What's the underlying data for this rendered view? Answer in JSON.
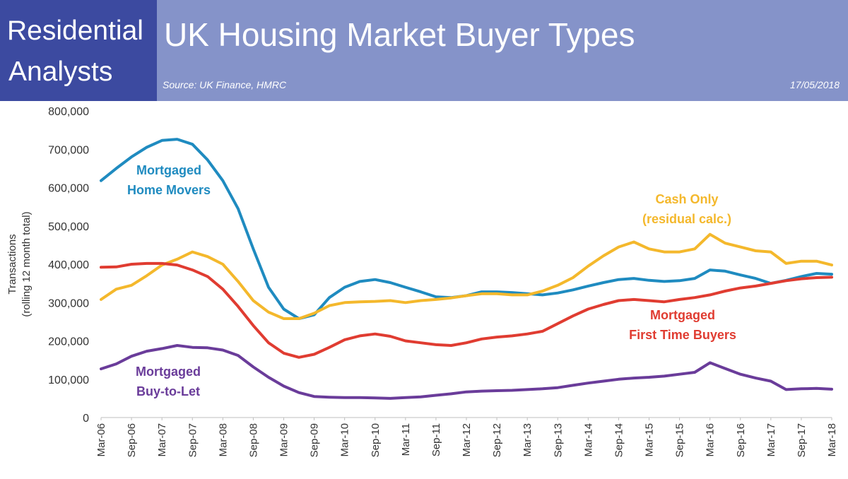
{
  "brand": {
    "line1": "Residential",
    "line2": "Analysts"
  },
  "header": {
    "title": "UK Housing Market Buyer Types",
    "source": "Source: UK Finance, HMRC",
    "date": "17/05/2018"
  },
  "colors": {
    "brand": "#3c4aa0",
    "header": "#8593c9",
    "home_movers": "#1f8bc0",
    "cash_only": "#f4b82c",
    "first_time_buyers": "#e03c31",
    "buy_to_let": "#6a3c9a"
  },
  "chart_data": {
    "type": "line",
    "title": "",
    "xlabel": "",
    "ylabel": "Transactions (rolling 12 month total)",
    "ylabel_lines": [
      "Transactions",
      "(rolling 12 month total)"
    ],
    "ylim": [
      0,
      800000
    ],
    "yticks": [
      0,
      100000,
      200000,
      300000,
      400000,
      500000,
      600000,
      700000,
      800000
    ],
    "ytick_labels": [
      "0",
      "100,000",
      "200,000",
      "300,000",
      "400,000",
      "500,000",
      "600,000",
      "700,000",
      "800,000"
    ],
    "x": [
      "Mar-06",
      "Jun-06",
      "Sep-06",
      "Dec-06",
      "Mar-07",
      "Jun-07",
      "Sep-07",
      "Dec-07",
      "Mar-08",
      "Jun-08",
      "Sep-08",
      "Dec-08",
      "Mar-09",
      "Jun-09",
      "Sep-09",
      "Dec-09",
      "Mar-10",
      "Jun-10",
      "Sep-10",
      "Dec-10",
      "Mar-11",
      "Jun-11",
      "Sep-11",
      "Dec-11",
      "Mar-12",
      "Jun-12",
      "Sep-12",
      "Dec-12",
      "Mar-13",
      "Jun-13",
      "Sep-13",
      "Dec-13",
      "Mar-14",
      "Jun-14",
      "Sep-14",
      "Dec-14",
      "Mar-15",
      "Jun-15",
      "Sep-15",
      "Dec-15",
      "Mar-16",
      "Jun-16",
      "Sep-16",
      "Dec-16",
      "Mar-17",
      "Jun-17",
      "Sep-17",
      "Dec-17",
      "Mar-18"
    ],
    "xtick_labels": [
      "Mar-06",
      "Sep-06",
      "Mar-07",
      "Sep-07",
      "Mar-08",
      "Sep-08",
      "Mar-09",
      "Sep-09",
      "Mar-10",
      "Sep-10",
      "Mar-11",
      "Sep-11",
      "Mar-12",
      "Sep-12",
      "Mar-13",
      "Sep-13",
      "Mar-14",
      "Sep-14",
      "Mar-15",
      "Sep-15",
      "Mar-16",
      "Sep-16",
      "Mar-17",
      "Sep-17",
      "Mar-18"
    ],
    "grid": false,
    "legend": "inline labels",
    "series": [
      {
        "key": "home_movers",
        "label_lines": [
          "Mortgaged",
          "Home Movers"
        ],
        "values": [
          618000,
          650000,
          680000,
          705000,
          723000,
          726000,
          713000,
          672000,
          618000,
          545000,
          440000,
          340000,
          283000,
          258000,
          268000,
          313000,
          340000,
          355000,
          360000,
          352000,
          340000,
          328000,
          315000,
          313000,
          318000,
          328000,
          328000,
          326000,
          323000,
          320000,
          325000,
          333000,
          343000,
          352000,
          360000,
          363000,
          358000,
          355000,
          357000,
          363000,
          385000,
          382000,
          372000,
          363000,
          350000,
          358000,
          368000,
          376000,
          374000
        ]
      },
      {
        "key": "cash_only",
        "label_lines": [
          "Cash Only",
          "(residual calc.)"
        ],
        "values": [
          308000,
          335000,
          345000,
          370000,
          398000,
          413000,
          432000,
          420000,
          400000,
          355000,
          305000,
          275000,
          258000,
          258000,
          272000,
          292000,
          300000,
          302000,
          303000,
          305000,
          300000,
          305000,
          308000,
          312000,
          318000,
          323000,
          323000,
          320000,
          320000,
          330000,
          345000,
          365000,
          395000,
          422000,
          445000,
          458000,
          440000,
          432000,
          432000,
          440000,
          478000,
          455000,
          445000,
          435000,
          432000,
          402000,
          408000,
          408000,
          398000
        ]
      },
      {
        "key": "first_time_buyers",
        "label_lines": [
          "Mortgaged",
          "First Time Buyers"
        ],
        "values": [
          392000,
          393000,
          400000,
          402000,
          402000,
          398000,
          385000,
          368000,
          335000,
          290000,
          240000,
          195000,
          168000,
          157000,
          165000,
          183000,
          203000,
          213000,
          218000,
          212000,
          200000,
          195000,
          190000,
          188000,
          195000,
          205000,
          210000,
          213000,
          218000,
          225000,
          245000,
          265000,
          283000,
          295000,
          305000,
          308000,
          305000,
          302000,
          308000,
          313000,
          320000,
          330000,
          338000,
          343000,
          350000,
          357000,
          362000,
          365000,
          366000
        ]
      },
      {
        "key": "buy_to_let",
        "label_lines": [
          "Mortgaged",
          "Buy-to-Let"
        ],
        "values": [
          127000,
          140000,
          160000,
          173000,
          180000,
          188000,
          183000,
          182000,
          176000,
          162000,
          132000,
          105000,
          82000,
          65000,
          55000,
          53000,
          52000,
          52000,
          51000,
          50000,
          52000,
          54000,
          58000,
          62000,
          67000,
          69000,
          70000,
          71000,
          73000,
          75000,
          78000,
          84000,
          90000,
          95000,
          100000,
          103000,
          105000,
          108000,
          113000,
          118000,
          143000,
          128000,
          113000,
          103000,
          95000,
          73000,
          75000,
          76000,
          74000
        ]
      }
    ]
  }
}
